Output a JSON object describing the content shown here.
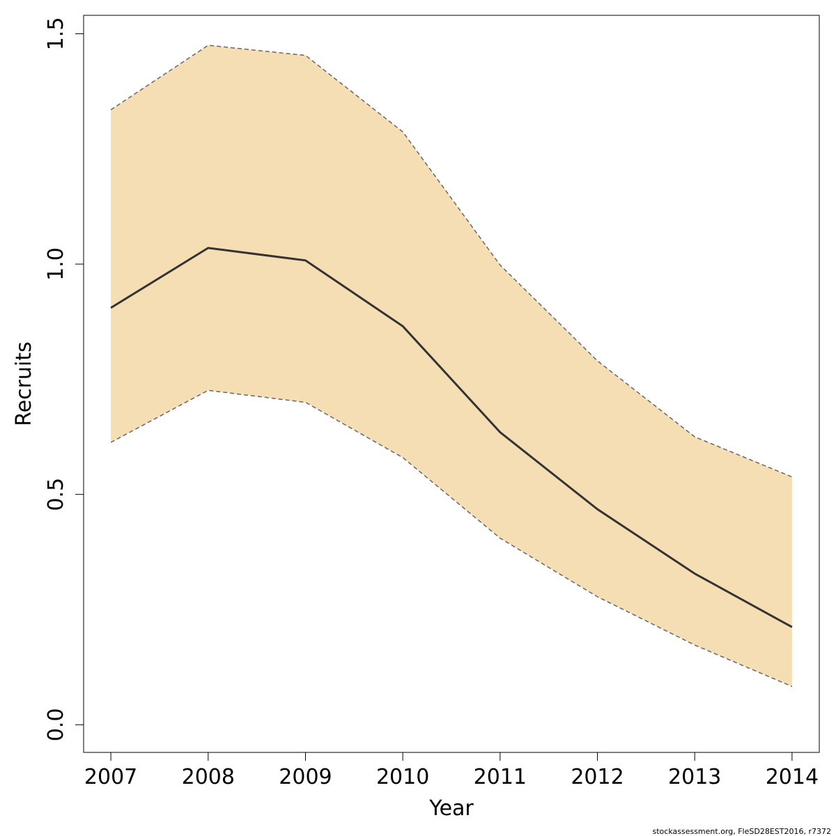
{
  "chart_data": {
    "type": "area",
    "title": "",
    "xlabel": "Year",
    "ylabel": "Recruits",
    "x": [
      2007,
      2008,
      2009,
      2010,
      2011,
      2012,
      2013,
      2014
    ],
    "x_tick_labels": [
      "2007",
      "2008",
      "2009",
      "2010",
      "2011",
      "2012",
      "2013",
      "2014"
    ],
    "y_ticks": [
      0.0,
      0.5,
      1.0,
      1.5
    ],
    "y_tick_labels": [
      "0.0",
      "0.5",
      "1.0",
      "1.5"
    ],
    "ylim": [
      -0.06,
      1.54
    ],
    "xlim": [
      2006.72,
      2014.28
    ],
    "series": [
      {
        "values": [
          0.905,
          1.035,
          1.008,
          0.865,
          0.635,
          0.468,
          0.328,
          0.212
        ]
      }
    ],
    "lower": [
      0.613,
      0.726,
      0.7,
      0.58,
      0.405,
      0.278,
      0.173,
      0.083
    ],
    "upper": [
      1.335,
      1.475,
      1.453,
      1.287,
      0.998,
      0.79,
      0.625,
      0.538
    ],
    "grid": false,
    "legend": "none",
    "colors": {
      "band_fill": "#F5DEB3",
      "band_border": "#666666",
      "line": "#333333",
      "axis": "#000000"
    }
  },
  "footnote": "stockassessment.org, FleSD28EST2016, r7372"
}
